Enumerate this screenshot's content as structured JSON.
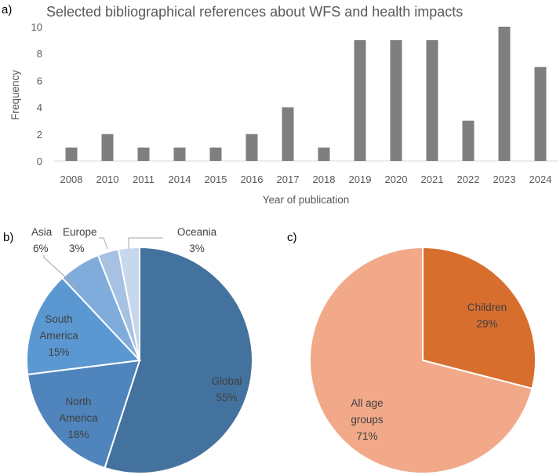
{
  "panels": {
    "a": "a)",
    "b": "b)",
    "c": "c)"
  },
  "chart_data": [
    {
      "type": "bar",
      "title": "Selected bibliographical references about WFS and health impacts",
      "xlabel": "Year of publication",
      "ylabel": "Frequency",
      "categories": [
        "2008",
        "2010",
        "2011",
        "2014",
        "2015",
        "2016",
        "2017",
        "2018",
        "2019",
        "2020",
        "2021",
        "2022",
        "2023",
        "2024"
      ],
      "values": [
        1,
        2,
        1,
        1,
        1,
        2,
        4,
        1,
        9,
        9,
        9,
        3,
        10,
        7
      ],
      "ylim": [
        0,
        10
      ],
      "yticks": [
        0,
        2,
        4,
        6,
        8,
        10
      ],
      "color": "#7f7f7f",
      "grid": false
    },
    {
      "type": "pie",
      "slices": [
        {
          "label": [
            "Global",
            "55%"
          ],
          "value": 55,
          "color": "#44729e"
        },
        {
          "label": [
            "North",
            "America",
            "18%"
          ],
          "value": 18,
          "color": "#4f84bc"
        },
        {
          "label": [
            "South",
            "America",
            "15%"
          ],
          "value": 15,
          "color": "#5b98d2"
        },
        {
          "label": [
            "Asia",
            "6%"
          ],
          "value": 6,
          "color": "#80acdc"
        },
        {
          "label": [
            "Europe",
            "3%"
          ],
          "value": 3,
          "color": "#a7c1e3"
        },
        {
          "label": [
            "Oceania",
            "3%"
          ],
          "value": 3,
          "color": "#c6d7ee"
        }
      ]
    },
    {
      "type": "pie",
      "slices": [
        {
          "label": [
            "Children",
            "29%"
          ],
          "value": 29,
          "color": "#d76e2e"
        },
        {
          "label": [
            "All age",
            "groups",
            "71%"
          ],
          "value": 71,
          "color": "#f2a98a"
        }
      ]
    }
  ]
}
